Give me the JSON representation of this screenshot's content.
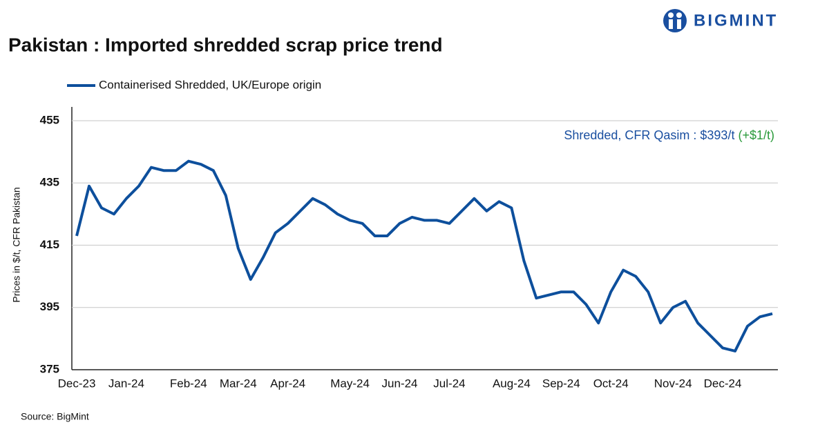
{
  "chart_data": {
    "type": "line",
    "title": "Pakistan : Imported shredded scrap price trend",
    "brand": "BIGMINT",
    "ylabel": "Prices in $/t, CFR Pakistan",
    "source": "Source: BigMint",
    "annotation": "Shredded, CFR Qasim : $393/t",
    "annotation_change": "(+$1/t)",
    "categories": [
      "Dec-23",
      null,
      null,
      null,
      "Jan-24",
      null,
      null,
      null,
      null,
      "Feb-24",
      null,
      null,
      null,
      "Mar-24",
      null,
      null,
      null,
      "Apr-24",
      null,
      null,
      null,
      null,
      "May-24",
      null,
      null,
      null,
      "Jun-24",
      null,
      null,
      null,
      "Jul-24",
      null,
      null,
      null,
      null,
      "Aug-24",
      null,
      null,
      null,
      "Sep-24",
      null,
      null,
      null,
      "Oct-24",
      null,
      null,
      null,
      null,
      "Nov-24",
      null,
      null,
      null,
      "Dec-24",
      null,
      null,
      null,
      null
    ],
    "series": [
      {
        "name": "Containerised Shredded, UK/Europe origin",
        "color": "#0d4f9c",
        "values": [
          418,
          434,
          427,
          425,
          430,
          434,
          440,
          439,
          439,
          442,
          441,
          439,
          431,
          414,
          404,
          411,
          419,
          422,
          426,
          430,
          428,
          425,
          423,
          422,
          418,
          418,
          422,
          424,
          423,
          423,
          422,
          426,
          430,
          426,
          429,
          427,
          410,
          398,
          399,
          400,
          400,
          396,
          390,
          400,
          407,
          405,
          400,
          390,
          395,
          397,
          390,
          386,
          382,
          381,
          389,
          392,
          393
        ]
      }
    ],
    "ylim": [
      375,
      455
    ],
    "yticks": [
      375,
      395,
      415,
      435,
      455
    ],
    "grid": true,
    "legend": "top-left"
  }
}
